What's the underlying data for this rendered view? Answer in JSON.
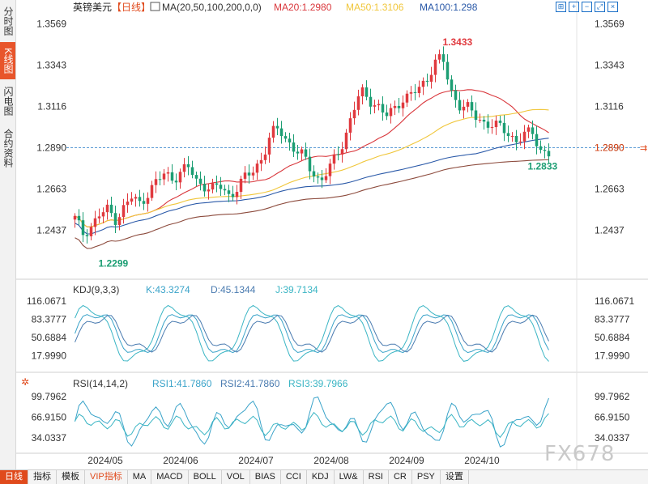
{
  "sidebar": {
    "tabs": [
      {
        "label": "分时图",
        "active": false
      },
      {
        "label": "K线图",
        "active": true
      },
      {
        "label": "闪电图",
        "active": false
      },
      {
        "label": "合约资料",
        "active": false
      }
    ]
  },
  "header": {
    "symbol": "英镑美元",
    "period": "【日线】",
    "ma_label": "MA(20,50,100,200,0,0)",
    "ma20_label": "MA20:1.2980",
    "ma50_label": "MA50:1.3106",
    "ma100_label": "MA100:1.298"
  },
  "colors": {
    "up": "#e0393e",
    "down": "#1c9e73",
    "ma20": "#d9373c",
    "ma50": "#f0c63a",
    "ma100": "#2a59a8",
    "ma200": "#8c4a3c",
    "k": "#3aa3c9",
    "d": "#4a7bb0",
    "j": "#3ab5c4",
    "accent": "#e04a1c",
    "price_line": "#5b9bd5"
  },
  "icons": [
    "grid-icon",
    "zoom-in-icon",
    "zoom-out-icon",
    "expand-icon",
    "close-icon",
    "settings-icon"
  ],
  "chart_data": [
    {
      "type": "candlestick",
      "title": "英镑美元【日线】",
      "y_ticks": [
        "1.3569",
        "1.3343",
        "1.3116",
        "1.2890",
        "1.2663",
        "1.2437"
      ],
      "ylim": [
        1.22,
        1.362
      ],
      "x_ticks": [
        "2024/05",
        "2024/06",
        "2024/07",
        "2024/08",
        "2024/09",
        "2024/10"
      ],
      "current_price_label": "1.2890",
      "high_label": "1.3433",
      "low_label": "1.2299",
      "last_low_label": "1.2833",
      "anchor_closes": [
        1.25,
        1.242,
        1.246,
        1.252,
        1.255,
        1.25,
        1.256,
        1.262,
        1.258,
        1.265,
        1.27,
        1.275,
        1.272,
        1.276,
        1.278,
        1.27,
        1.268,
        1.266,
        1.268,
        1.262,
        1.268,
        1.273,
        1.278,
        1.284,
        1.296,
        1.3,
        1.293,
        1.287,
        1.284,
        1.277,
        1.27,
        1.276,
        1.285,
        1.294,
        1.308,
        1.32,
        1.316,
        1.312,
        1.306,
        1.31,
        1.316,
        1.317,
        1.321,
        1.326,
        1.336,
        1.338,
        1.32,
        1.313,
        1.311,
        1.306,
        1.303,
        1.302,
        1.3,
        1.297,
        1.293,
        1.296,
        1.297,
        1.288,
        1.286
      ]
    },
    {
      "type": "line",
      "title": "KDJ(9,3,3)",
      "series_labels": [
        "K:43.3274",
        "D:45.1344",
        "J:39.7134"
      ],
      "y_ticks": [
        "116.0671",
        "83.3777",
        "50.6884",
        "17.9990"
      ]
    },
    {
      "type": "line",
      "title": "RSI(14,14,2)",
      "series_labels": [
        "RSI1:41.7860",
        "RSI2:41.7860",
        "RSI3:39.7966"
      ],
      "y_ticks": [
        "99.7962",
        "66.9150",
        "34.0337"
      ]
    }
  ],
  "bottom_tabs": [
    {
      "label": "日线",
      "active": true
    },
    {
      "label": "指标",
      "active": false
    },
    {
      "label": "模板",
      "active": false
    },
    {
      "label": "VIP指标",
      "active": false,
      "vip": true
    },
    {
      "label": "MA"
    },
    {
      "label": "MACD"
    },
    {
      "label": "BOLL"
    },
    {
      "label": "VOL"
    },
    {
      "label": "BIAS"
    },
    {
      "label": "CCI"
    },
    {
      "label": "KDJ"
    },
    {
      "label": "LW&"
    },
    {
      "label": "RSI"
    },
    {
      "label": "CR"
    },
    {
      "label": "PSY"
    },
    {
      "label": "设置"
    }
  ],
  "watermark": "FX678"
}
